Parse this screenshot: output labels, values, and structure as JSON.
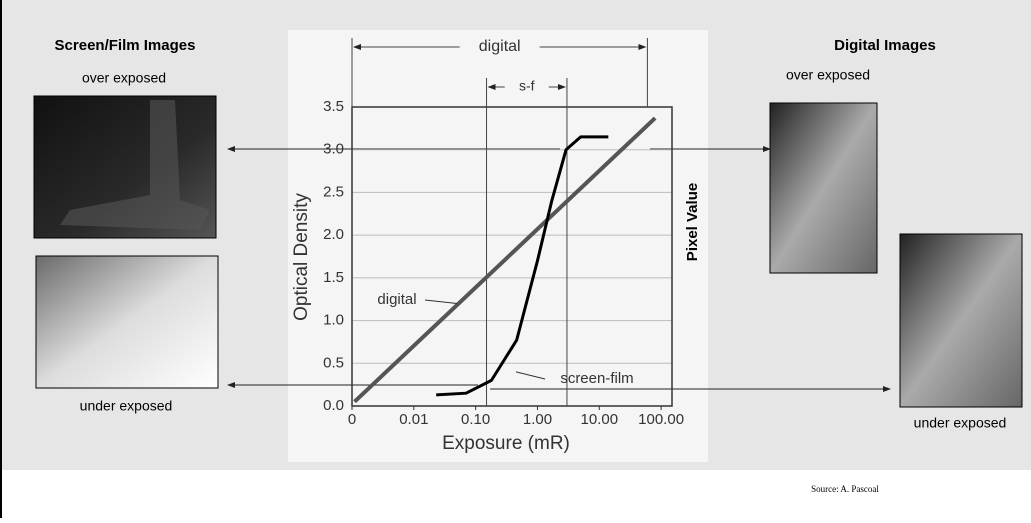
{
  "title_left": "Screen/Film Images",
  "left_over": "over exposed",
  "left_under": "under exposed",
  "title_right": "Digital Images",
  "right_over": "over exposed",
  "right_under": "under exposed",
  "source": "Source: A. Pascoal",
  "chart_data": {
    "type": "line",
    "xlabel": "Exposure (mR)",
    "ylabel": "Optical Density",
    "y2label": "Pixel Value",
    "xscale": "log",
    "xlim": [
      0.001,
      150
    ],
    "ylim": [
      0,
      3.5
    ],
    "xticks": [
      {
        "value": 0.001,
        "label": "0"
      },
      0.01,
      {
        "value": 0.1,
        "label": "0.10"
      },
      {
        "value": 1,
        "label": "1.00"
      },
      {
        "value": 10,
        "label": "10.00"
      },
      {
        "value": 100,
        "label": "100.00"
      }
    ],
    "yticks": [
      {
        "value": 0,
        "label": "0.0"
      },
      0.5,
      {
        "value": 1,
        "label": "1.0"
      },
      1.5,
      {
        "value": 2,
        "label": "2.0"
      },
      2.5,
      {
        "value": 3,
        "label": "3.0"
      },
      3.5
    ],
    "grid": true,
    "series": [
      {
        "name": "digital",
        "color": "#555555",
        "x": [
          0.0011,
          80
        ],
        "values": [
          0.05,
          3.37
        ]
      },
      {
        "name": "screen-film",
        "color": "#000000",
        "x": [
          0.023,
          0.07,
          0.18,
          0.46,
          1.0,
          1.7,
          2.9,
          5,
          14
        ],
        "values": [
          0.13,
          0.15,
          0.3,
          0.77,
          1.7,
          2.4,
          3.0,
          3.15,
          3.15
        ]
      }
    ],
    "ranges": [
      {
        "label": "digital",
        "x": [
          0.001,
          60
        ]
      },
      {
        "label": "s-f",
        "x": [
          0.15,
          3
        ]
      }
    ]
  }
}
